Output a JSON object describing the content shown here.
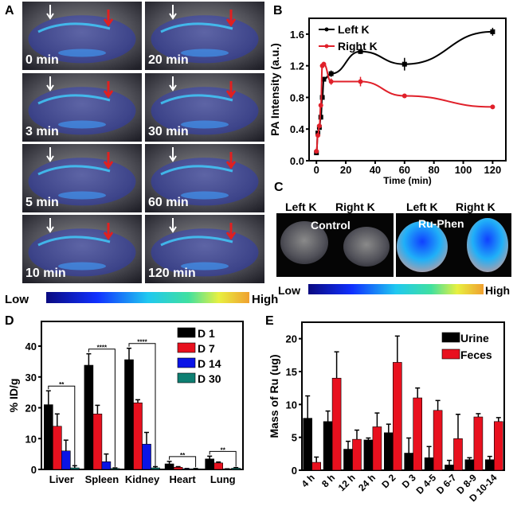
{
  "panel_a": {
    "label": "A",
    "frames": [
      "0 min",
      "20 min",
      "3 min",
      "30 min",
      "5 min",
      "60 min",
      "10 min",
      "120 min"
    ],
    "colorbar_low": "Low",
    "colorbar_high": "High"
  },
  "panel_c": {
    "label": "C",
    "headers": [
      "Left K",
      "Right K",
      "Left K",
      "Right K"
    ],
    "control_label": "Control",
    "treated_label": "Ru-Phen",
    "colorbar_low": "Low",
    "colorbar_high": "High"
  },
  "colors": {
    "black": "#000000",
    "red": "#e8101e",
    "blue": "#0a14e6",
    "teal": "#0e7f72",
    "line_red": "#e0202a"
  },
  "chart_data": [
    {
      "panel": "B",
      "type": "line",
      "xlabel": "Time (min)",
      "ylabel": "PA Intensity (a.u.)",
      "xlim": [
        -5,
        129
      ],
      "ylim": [
        0,
        1.8
      ],
      "xticks": [
        0,
        20,
        40,
        60,
        80,
        100,
        120
      ],
      "yticks": [
        0.0,
        0.4,
        0.8,
        1.2,
        1.6
      ],
      "ytick_labels": [
        "0.0",
        "0.4",
        "0.8",
        "1.2",
        "1.6"
      ],
      "legend_position": "top-left",
      "series": [
        {
          "name": "Left K",
          "color": "#000000",
          "x": [
            0,
            1,
            2,
            3,
            4,
            5,
            10,
            30,
            60,
            120
          ],
          "y": [
            0.1,
            0.35,
            0.42,
            0.55,
            0.8,
            1.03,
            1.1,
            1.38,
            1.22,
            1.63
          ],
          "err": [
            0.02,
            0.03,
            0.03,
            0.03,
            0.03,
            0.03,
            0.04,
            0.03,
            0.08,
            0.05
          ]
        },
        {
          "name": "Right K",
          "color": "#e0202a",
          "x": [
            0,
            1,
            2,
            3,
            4,
            5,
            10,
            30,
            60,
            120
          ],
          "y": [
            0.12,
            0.32,
            0.44,
            0.7,
            1.2,
            1.22,
            1.0,
            1.0,
            0.82,
            0.68
          ],
          "err": [
            0.03,
            0.03,
            0.03,
            0.03,
            0.03,
            0.03,
            0.04,
            0.06,
            0.02,
            0.01
          ]
        }
      ]
    },
    {
      "panel": "D",
      "type": "bar",
      "ylabel": "% ID/g",
      "ylim": [
        0,
        48
      ],
      "yticks": [
        0,
        10,
        20,
        30,
        40
      ],
      "categories": [
        "Liver",
        "Spleen",
        "Kidney",
        "Heart",
        "Lung"
      ],
      "legend_position": "top-right",
      "significance": [
        "**",
        "****",
        "****",
        "**",
        "**"
      ],
      "series": [
        {
          "name": "D 1",
          "color": "#000000",
          "values": [
            21.0,
            33.8,
            35.6,
            1.8,
            3.4
          ],
          "err": [
            4.5,
            3.7,
            3.7,
            0.8,
            0.9
          ]
        },
        {
          "name": "D 7",
          "color": "#e8101e",
          "values": [
            14.0,
            18.0,
            21.6,
            0.7,
            2.1
          ],
          "err": [
            4.0,
            2.8,
            1.0,
            0.2,
            0.3
          ]
        },
        {
          "name": "D 14",
          "color": "#0a14e6",
          "values": [
            6.0,
            2.5,
            8.2,
            0.2,
            0.1
          ],
          "err": [
            3.5,
            2.5,
            3.8,
            0.1,
            0.1
          ]
        },
        {
          "name": "D 30",
          "color": "#0e7f72",
          "values": [
            0.5,
            0.3,
            0.5,
            0.2,
            0.4
          ],
          "err": [
            0.7,
            0.2,
            0.4,
            0.1,
            0.2
          ]
        }
      ]
    },
    {
      "panel": "E",
      "type": "bar",
      "ylabel": "Mass of Ru (ug)",
      "ylim": [
        0,
        22.5
      ],
      "yticks": [
        0,
        5,
        10,
        15,
        20
      ],
      "categories": [
        "4 h",
        "8 h",
        "12 h",
        "24 h",
        "D 2",
        "D 3",
        "D 4-5",
        "D 6-7",
        "D 8-9",
        "D 10-14"
      ],
      "legend_position": "top-right",
      "series": [
        {
          "name": "Urine",
          "color": "#000000",
          "values": [
            7.9,
            7.4,
            3.2,
            4.6,
            5.7,
            2.6,
            1.9,
            0.8,
            1.6,
            1.6
          ],
          "err": [
            3.4,
            1.6,
            1.2,
            0.3,
            1.3,
            2.3,
            1.7,
            0.7,
            0.3,
            0.5
          ]
        },
        {
          "name": "Feces",
          "color": "#e8101e",
          "values": [
            1.2,
            14.0,
            4.7,
            6.6,
            16.4,
            11.0,
            9.1,
            4.8,
            8.1,
            7.4
          ],
          "err": [
            0.8,
            4.0,
            1.4,
            2.1,
            4.0,
            1.5,
            1.5,
            3.7,
            0.5,
            0.6
          ]
        }
      ]
    }
  ]
}
